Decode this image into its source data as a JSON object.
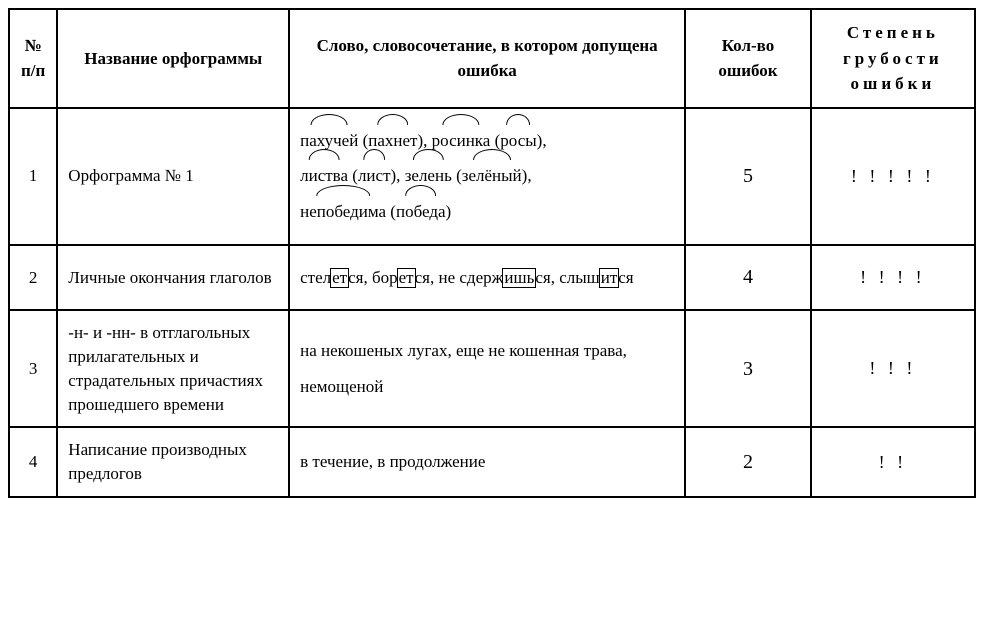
{
  "table": {
    "border_color": "#000000",
    "background_color": "#ffffff",
    "font_family": "Times New Roman",
    "columns": {
      "num": {
        "header": "№ п/п",
        "width_pct": 5
      },
      "name": {
        "header": "Название орфограммы",
        "width_pct": 24
      },
      "word": {
        "header": "Слово, словосочетание, в котором допущена ошибка",
        "width_pct": 41
      },
      "count": {
        "header": "Кол-во ошибок",
        "width_pct": 13
      },
      "degree": {
        "header": "Степень грубости ошибки",
        "width_pct": 17
      }
    },
    "rows": [
      {
        "num": "1",
        "name": "Орфограмма № 1",
        "word_html_type": "arcs",
        "word_lines": [
          [
            "пахучей",
            " (",
            "пахнет",
            "), ",
            "росинка",
            " (",
            "росы",
            "),"
          ],
          [
            "листва",
            " (",
            "лист",
            "), ",
            "зелень",
            " (",
            "зелёный",
            "),"
          ],
          [
            "непобедима",
            " (",
            "победа",
            ")"
          ]
        ],
        "word_plain": "пахучей (пахнет), росинка (росы), листва (лист), зелень (зелёный), непобедима (победа)",
        "count": "5",
        "degree": "! ! ! ! !"
      },
      {
        "num": "2",
        "name": "Личные окончания глаголов",
        "word_html_type": "boxes",
        "word_segments": [
          {
            "t": "стел"
          },
          {
            "t": "ет",
            "box": true
          },
          {
            "t": "ся, бор"
          },
          {
            "t": "ет",
            "box": true
          },
          {
            "t": "ся, не сдерж"
          },
          {
            "t": "ишь",
            "box": true
          },
          {
            "t": "ся, слыш"
          },
          {
            "t": "ит",
            "box": true
          },
          {
            "t": "ся"
          }
        ],
        "word_plain": "стелется, борется, не сдержишься, слышится",
        "count": "4",
        "degree": "! ! ! !"
      },
      {
        "num": "3",
        "name": "-н- и -нн- в отглаголь­ных прилагательных и страдательных причастиях прошедшего времени",
        "word_html_type": "plain",
        "word_plain": "на некошеных лугах, еще не кошенная трава, немощеной",
        "count": "3",
        "degree": "! ! !"
      },
      {
        "num": "4",
        "name": "Написание производных предлогов",
        "word_html_type": "plain",
        "word_plain": "в течение, в продолжение",
        "count": "2",
        "degree": "! !"
      }
    ]
  }
}
